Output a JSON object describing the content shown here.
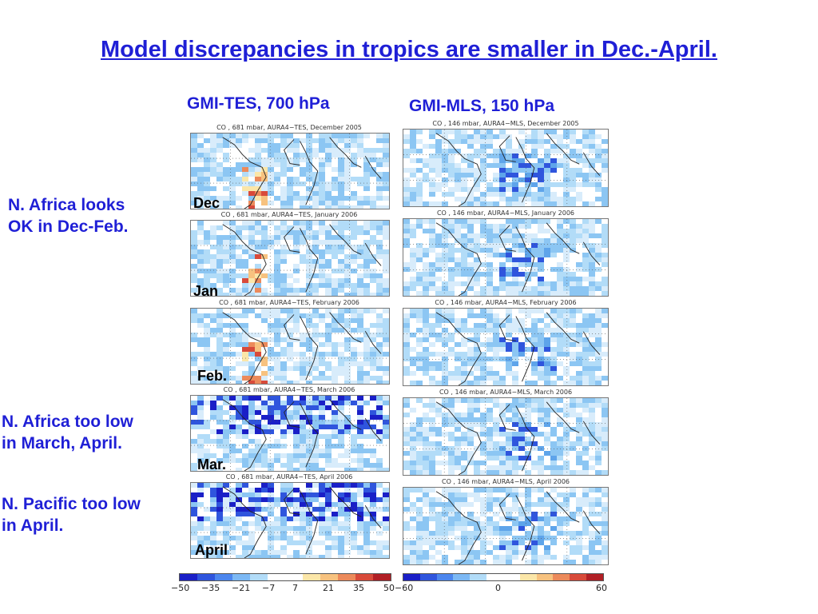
{
  "title": "Model discrepancies in tropics are smaller in Dec.-April.",
  "columns": {
    "left": "GMI-TES, 700 hPa",
    "right": "GMI-MLS, 150 hPa"
  },
  "notes": {
    "africa_ok": [
      "N. Africa looks",
      "OK in Dec-Feb."
    ],
    "africa_low": [
      "N. Africa too low",
      "in March, April."
    ],
    "pacific_low": [
      "N. Pacific too low",
      "in April."
    ]
  },
  "months": [
    "Dec",
    "Jan",
    "Feb.",
    "Mar.",
    "April"
  ],
  "panel_titles": {
    "left": [
      "CO , 681 mbar, AURA4−TES, December 2005",
      "CO , 681 mbar, AURA4−TES, January 2006",
      "CO , 681 mbar, AURA4−TES, February 2006",
      "CO , 681 mbar, AURA4−TES, March 2006",
      "CO , 681 mbar, AURA4−TES, April 2006"
    ],
    "right": [
      "CO , 146 mbar, AURA4−MLS, December 2005",
      "CO , 146 mbar, AURA4−MLS, January 2006",
      "CO , 146 mbar, AURA4−MLS, February 2006",
      "CO , 146 mbar, AURA4−MLS, March 2006",
      "CO , 146 mbar, AURA4−MLS, April 2006"
    ]
  },
  "colorbar_left": {
    "ticks": [
      "−50",
      "−35",
      "−21",
      "−7",
      "7",
      "21",
      "35",
      "50"
    ],
    "colors": [
      "#1a1fc7",
      "#2f55dd",
      "#4c86ee",
      "#7cb8f4",
      "#b2dcf8",
      "#ffffff",
      "#ffffff",
      "#fbe6a8",
      "#f7c27f",
      "#ec8a5b",
      "#d84a3a",
      "#b11f25"
    ]
  },
  "colorbar_right": {
    "ticks": [
      "−60",
      "0",
      "60"
    ],
    "colors": [
      "#1a1fc7",
      "#2f55dd",
      "#4c86ee",
      "#7cb8f4",
      "#b2dcf8",
      "#ffffff",
      "#ffffff",
      "#fbe6a8",
      "#f7c27f",
      "#ec8a5b",
      "#d84a3a",
      "#b11f25"
    ]
  }
}
